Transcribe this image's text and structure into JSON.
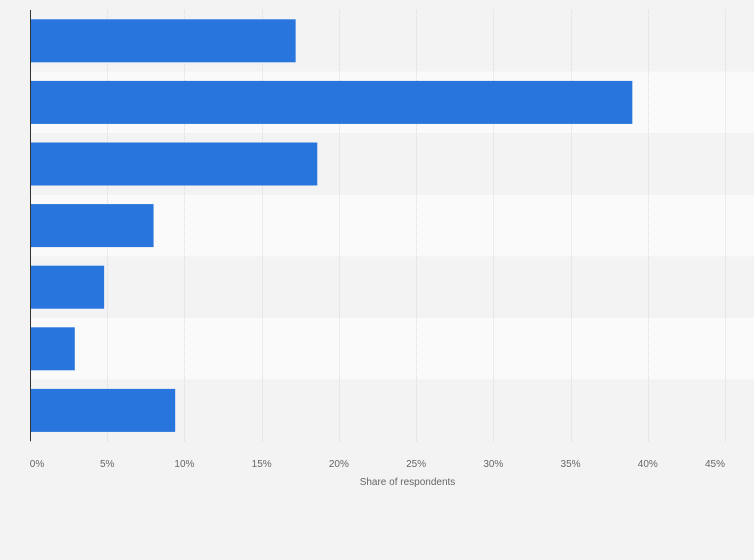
{
  "chart_data": {
    "type": "bar",
    "orientation": "horizontal",
    "categories": [
      "",
      "",
      "",
      "",
      "",
      "",
      ""
    ],
    "values": [
      17.2,
      39,
      18.6,
      8,
      4.8,
      2.9,
      9.4
    ],
    "title": "",
    "xlabel": "Share of respondents",
    "ylabel": "",
    "xlim": [
      0,
      45
    ],
    "x_ticks": [
      0,
      5,
      10,
      15,
      20,
      25,
      30,
      35,
      40,
      45
    ],
    "x_tick_labels": [
      "0%",
      "5%",
      "10%",
      "15%",
      "20%",
      "25%",
      "30%",
      "35%",
      "40%",
      "45%"
    ],
    "grid": true,
    "legend": "none",
    "colors": {
      "bar": "#2876dd",
      "band_dark": "#f3f3f3",
      "band_light": "#fafafa",
      "grid": "#dcdcdc",
      "axis": "#333333",
      "text": "#666666"
    }
  }
}
